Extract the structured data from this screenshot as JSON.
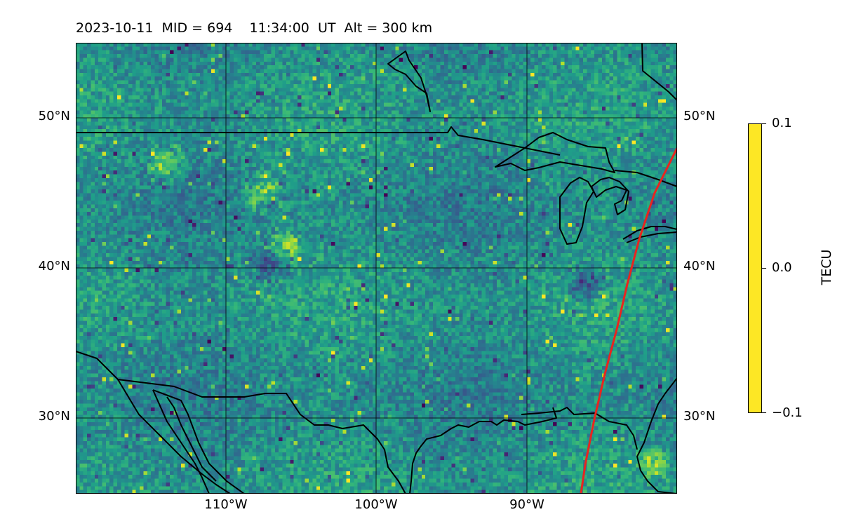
{
  "figure": {
    "title": "2023-10-11  MID = 694    11:34:00  UT  Alt = 300 km"
  },
  "colorbar": {
    "label": "TECU",
    "ticks": [
      "0.1",
      "0.0",
      "−0.1"
    ],
    "cmap": "viridis",
    "vmin": -0.1,
    "vmax": 0.1
  },
  "chart_data": {
    "type": "heatmap",
    "title": "2023-10-11  MID = 694    11:34:00  UT  Alt = 300 km",
    "xlabel": "",
    "ylabel": "",
    "x_range_deg": [
      -120,
      -80
    ],
    "y_range_deg": [
      25,
      55
    ],
    "x_ticks": [
      {
        "value": -110,
        "label": "110°W"
      },
      {
        "value": -100,
        "label": "100°W"
      },
      {
        "value": -90,
        "label": "90°W"
      }
    ],
    "y_ticks": [
      {
        "value": 50,
        "label": "50°N"
      },
      {
        "value": 40,
        "label": "40°N"
      },
      {
        "value": 30,
        "label": "30°N"
      }
    ],
    "grid": true,
    "value_range": [
      -0.1,
      0.1
    ],
    "colorbar_label": "TECU",
    "background_level": 0.0,
    "notable_features": [
      {
        "note": "positive anomalies (~0.1 TECU)",
        "lon": -107.5,
        "lat": 45.0
      },
      {
        "note": "positive anomalies (~0.1 TECU)",
        "lon": -106.0,
        "lat": 41.5
      },
      {
        "note": "positive anomalies (~0.1 TECU)",
        "lon": -114.0,
        "lat": 47.0
      },
      {
        "note": "negative anomalies (~-0.1 TECU)",
        "lon": -107.0,
        "lat": 40.3
      },
      {
        "note": "negative anomalies (~-0.1 TECU)",
        "lon": -86.0,
        "lat": 39.0
      },
      {
        "note": "enhanced region",
        "lon": -81.5,
        "lat": 27.0
      }
    ],
    "terminator_line": {
      "color": "#e8251f",
      "points": [
        [
          -80.0,
          48.0
        ],
        [
          -81.5,
          45.0
        ],
        [
          -82.5,
          42.0
        ],
        [
          -83.3,
          39.0
        ],
        [
          -84.0,
          36.0
        ],
        [
          -84.8,
          33.0
        ],
        [
          -85.5,
          30.0
        ],
        [
          -86.1,
          27.0
        ],
        [
          -86.4,
          25.0
        ]
      ]
    }
  }
}
